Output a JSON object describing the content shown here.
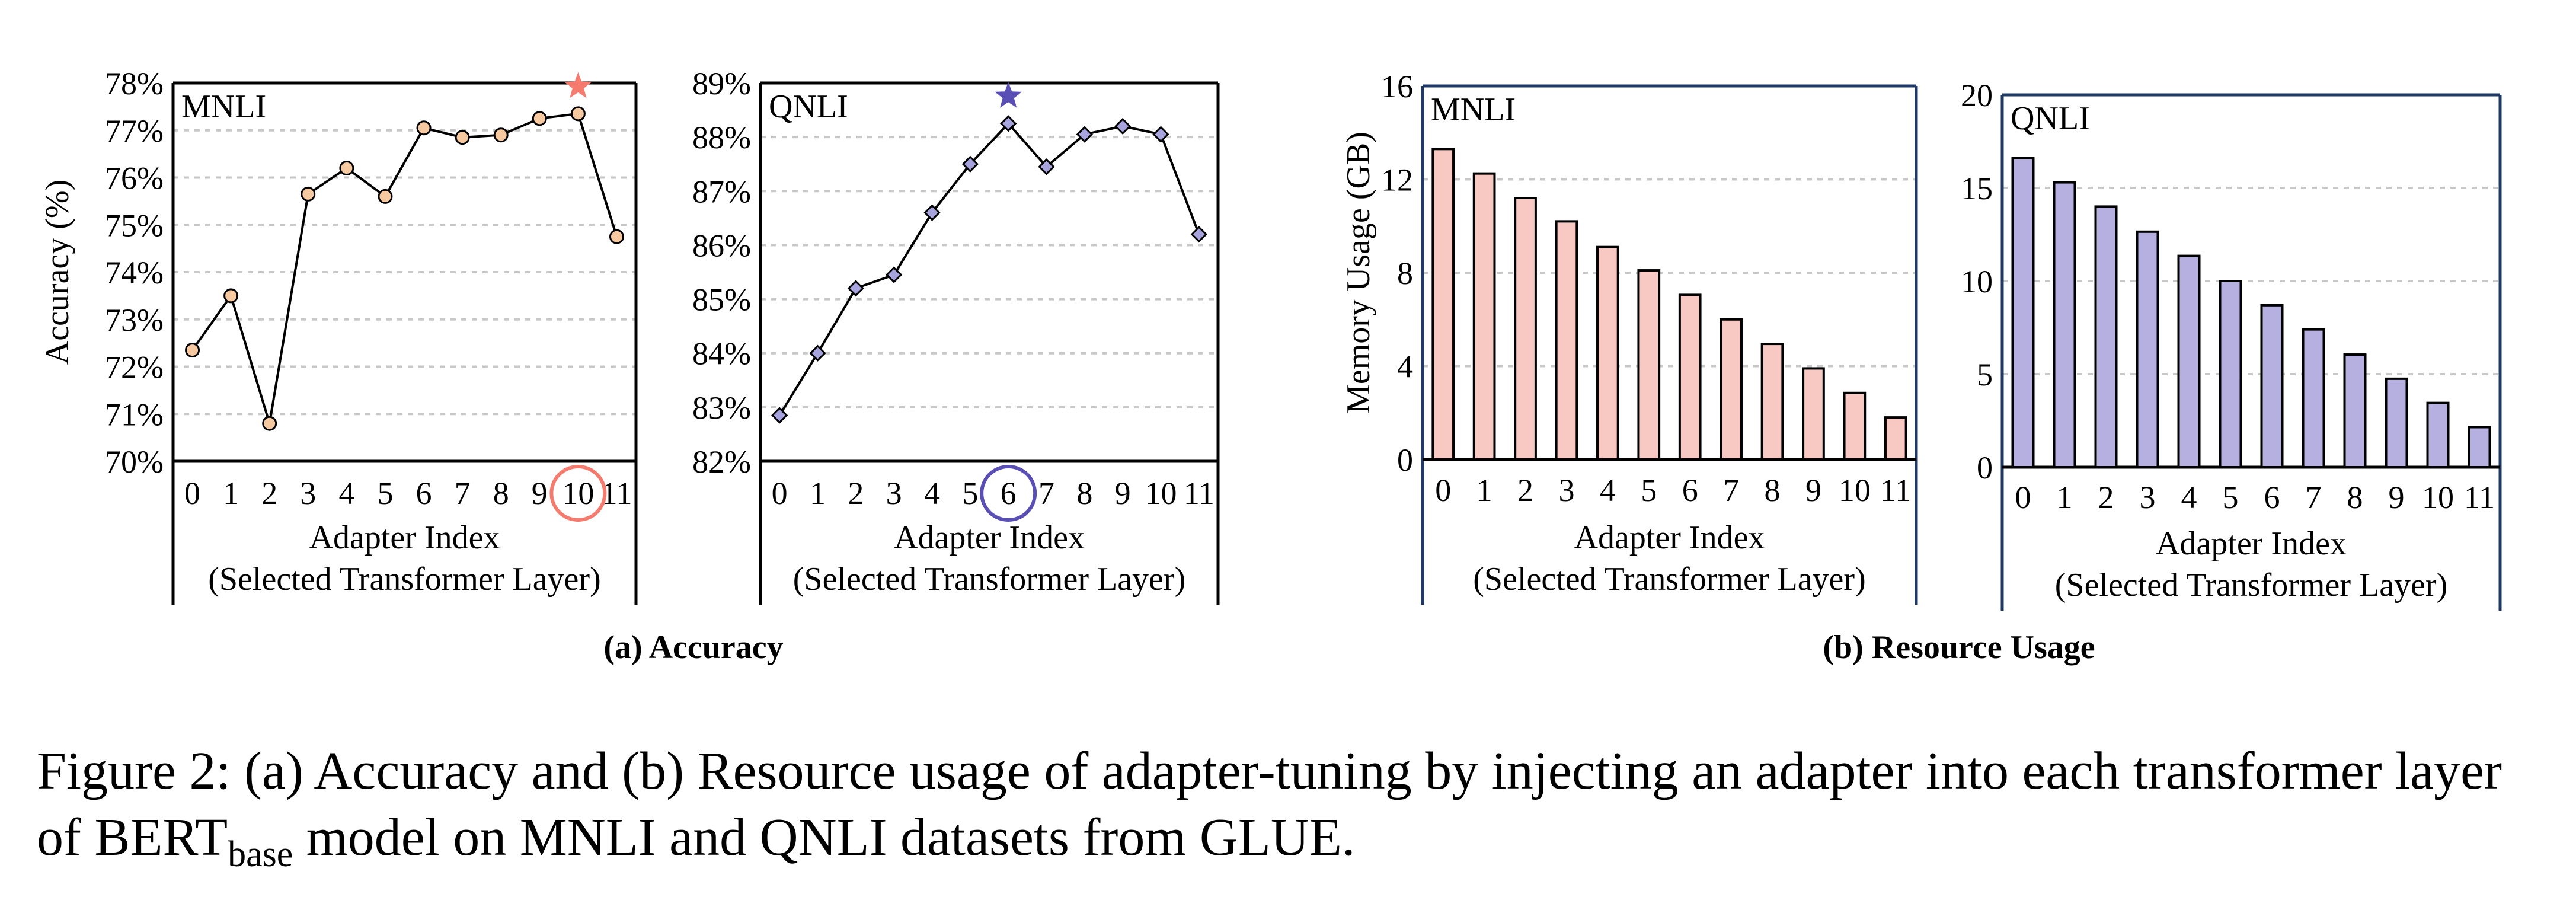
{
  "chart_data": [
    {
      "type": "line",
      "panel_title": "MNLI",
      "ylabel": "Accuracy (%)",
      "xlabel": [
        "Adapter Index",
        "(Selected Transformer Layer)"
      ],
      "y_ticks": [
        "70%",
        "71%",
        "72%",
        "73%",
        "74%",
        "75%",
        "76%",
        "77%",
        "78%"
      ],
      "ylim": [
        70,
        78
      ],
      "x": [
        0,
        1,
        2,
        3,
        4,
        5,
        6,
        7,
        8,
        9,
        10,
        11
      ],
      "x_labels": [
        "0",
        "1",
        "2",
        "3",
        "4",
        "5",
        "6",
        "7",
        "8",
        "9",
        "10",
        "11"
      ],
      "values": [
        72.35,
        73.5,
        70.8,
        75.65,
        76.2,
        75.6,
        77.05,
        76.85,
        76.9,
        77.25,
        77.35,
        74.75
      ],
      "best_index": 10,
      "marker": "circle",
      "marker_color": "#f7c9a0",
      "highlight_color": "#f47b6e",
      "grid": true
    },
    {
      "type": "line",
      "panel_title": "QNLI",
      "ylabel": "",
      "xlabel": [
        "Adapter Index",
        "(Selected Transformer Layer)"
      ],
      "y_ticks": [
        "82%",
        "83%",
        "84%",
        "85%",
        "86%",
        "87%",
        "88%",
        "89%"
      ],
      "ylim": [
        82,
        89
      ],
      "x": [
        0,
        1,
        2,
        3,
        4,
        5,
        6,
        7,
        8,
        9,
        10,
        11
      ],
      "x_labels": [
        "0",
        "1",
        "2",
        "3",
        "4",
        "5",
        "6",
        "7",
        "8",
        "9",
        "10",
        "11"
      ],
      "values": [
        82.85,
        84.0,
        85.2,
        85.45,
        86.6,
        87.5,
        88.25,
        87.45,
        88.05,
        88.2,
        88.05,
        86.2
      ],
      "best_index": 6,
      "marker": "diamond",
      "marker_color": "#a7a4dd",
      "highlight_color": "#5a4fb5",
      "grid": true
    },
    {
      "type": "bar",
      "panel_title": "MNLI",
      "ylabel": "Memory Usage (GB)",
      "xlabel": [
        "Adapter Index",
        "(Selected Transformer Layer)"
      ],
      "y_ticks": [
        "0",
        "4",
        "8",
        "12",
        "16"
      ],
      "ylim": [
        0,
        16
      ],
      "categories": [
        "0",
        "1",
        "2",
        "3",
        "4",
        "5",
        "6",
        "7",
        "8",
        "9",
        "10",
        "11"
      ],
      "values": [
        13.3,
        12.25,
        11.2,
        10.2,
        9.1,
        8.1,
        7.05,
        6.0,
        4.95,
        3.9,
        2.85,
        1.8
      ],
      "bar_color": "#f8c8c2",
      "grid": true
    },
    {
      "type": "bar",
      "panel_title": "QNLI",
      "ylabel": "",
      "xlabel": [
        "Adapter Index",
        "(Selected Transformer Layer)"
      ],
      "y_ticks": [
        "0",
        "5",
        "10",
        "15",
        "20"
      ],
      "ylim": [
        0,
        20
      ],
      "categories": [
        "0",
        "1",
        "2",
        "3",
        "4",
        "5",
        "6",
        "7",
        "8",
        "9",
        "10",
        "11"
      ],
      "values": [
        16.6,
        15.3,
        14.0,
        12.65,
        11.35,
        10.0,
        8.7,
        7.4,
        6.05,
        4.75,
        3.45,
        2.15
      ],
      "bar_color": "#b6b0e1",
      "grid": true
    }
  ],
  "subcaptions": {
    "a": "(a) Accuracy",
    "b": "(b) Resource Usage"
  },
  "caption": {
    "line1": "Figure 2: (a) Accuracy and (b) Resource usage of adapter-tuning by injecting an adapter into each transformer layer",
    "line2_prefix": "of BERT",
    "line2_sub": "base",
    "line2_suffix": " model on MNLI and QNLI datasets from GLUE."
  }
}
